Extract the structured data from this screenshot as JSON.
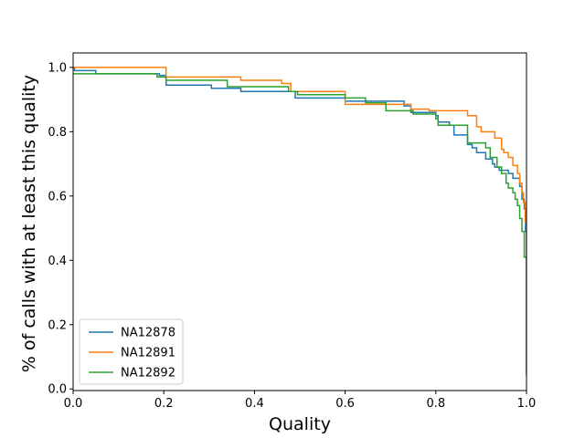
{
  "chart_data": {
    "type": "line",
    "step": true,
    "xlabel": "Quality",
    "ylabel": "% of calls with at least this quality",
    "xlim": [
      0.0,
      1.0
    ],
    "ylim": [
      -0.005,
      1.045
    ],
    "xticks": [
      0.0,
      0.2,
      0.4,
      0.6,
      0.8,
      1.0
    ],
    "xtick_labels": [
      "0.0",
      "0.2",
      "0.4",
      "0.6",
      "0.8",
      "1.0"
    ],
    "yticks": [
      0.0,
      0.2,
      0.4,
      0.6,
      0.8,
      1.0
    ],
    "ytick_labels": [
      "0.0",
      "0.2",
      "0.4",
      "0.6",
      "0.8",
      "1.0"
    ],
    "grid": false,
    "legend_position": "lower-left",
    "series": [
      {
        "name": "NA12878",
        "color": "#1f77b4",
        "x": [
          0.0,
          0.003,
          0.05,
          0.19,
          0.205,
          0.305,
          0.37,
          0.49,
          0.6,
          0.73,
          0.745,
          0.8,
          0.805,
          0.83,
          0.84,
          0.87,
          0.88,
          0.89,
          0.91,
          0.925,
          0.93,
          0.94,
          0.96,
          0.97,
          0.985,
          0.99,
          0.995,
          0.998,
          1.0,
          1.0
        ],
        "y": [
          1.0,
          0.99,
          0.98,
          0.975,
          0.945,
          0.935,
          0.925,
          0.905,
          0.895,
          0.88,
          0.86,
          0.85,
          0.83,
          0.82,
          0.79,
          0.76,
          0.75,
          0.735,
          0.715,
          0.7,
          0.69,
          0.68,
          0.67,
          0.655,
          0.63,
          0.59,
          0.56,
          0.49,
          0.04,
          0.04
        ]
      },
      {
        "name": "NA12891",
        "color": "#ff7f0e",
        "x": [
          0.0,
          0.205,
          0.37,
          0.46,
          0.48,
          0.6,
          0.68,
          0.74,
          0.745,
          0.785,
          0.83,
          0.87,
          0.89,
          0.9,
          0.93,
          0.945,
          0.95,
          0.96,
          0.97,
          0.98,
          0.985,
          0.99,
          0.993,
          0.997,
          1.0,
          1.0
        ],
        "y": [
          1.0,
          0.97,
          0.96,
          0.95,
          0.925,
          0.885,
          0.885,
          0.885,
          0.87,
          0.865,
          0.865,
          0.85,
          0.815,
          0.8,
          0.78,
          0.745,
          0.735,
          0.72,
          0.695,
          0.67,
          0.64,
          0.61,
          0.58,
          0.52,
          0.38,
          0.38
        ]
      },
      {
        "name": "NA12892",
        "color": "#2ca02c",
        "x": [
          0.0,
          0.185,
          0.205,
          0.34,
          0.475,
          0.495,
          0.6,
          0.645,
          0.69,
          0.75,
          0.8,
          0.805,
          0.87,
          0.91,
          0.92,
          0.935,
          0.945,
          0.955,
          0.96,
          0.97,
          0.975,
          0.98,
          0.985,
          0.99,
          0.995,
          1.0,
          1.0
        ],
        "y": [
          0.98,
          0.97,
          0.96,
          0.94,
          0.925,
          0.915,
          0.905,
          0.89,
          0.865,
          0.855,
          0.84,
          0.82,
          0.765,
          0.75,
          0.72,
          0.69,
          0.67,
          0.64,
          0.625,
          0.61,
          0.59,
          0.57,
          0.53,
          0.49,
          0.41,
          0.05,
          0.05
        ]
      }
    ]
  }
}
